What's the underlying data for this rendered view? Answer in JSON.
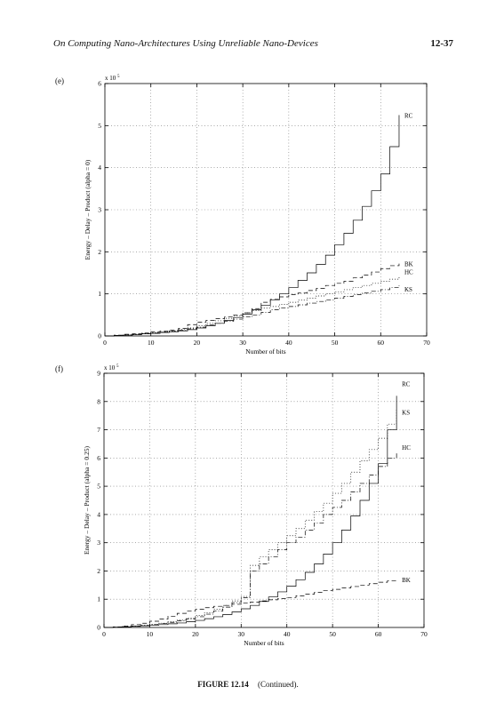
{
  "header": {
    "title": "On Computing Nano-Architectures Using Unreliable Nano-Devices",
    "page_number": "12-37"
  },
  "caption": {
    "label": "FIGURE 12.14",
    "text": "(Continued)."
  },
  "panel_labels": [
    "(e)",
    "(f)"
  ],
  "chart_data": [
    {
      "type": "line",
      "panel": "(e)",
      "xlabel": "Number of bits",
      "ylabel": "Energy – Delay – Product  (alpha = 0)",
      "exponent_label": "x 10",
      "exponent_power": "5",
      "xlim": [
        0,
        70
      ],
      "ylim": [
        0,
        6
      ],
      "xticks": [
        "0",
        "10",
        "20",
        "30",
        "40",
        "50",
        "60",
        "70"
      ],
      "yticks": [
        "0",
        "1",
        "2",
        "3",
        "4",
        "5",
        "6"
      ],
      "grid": true,
      "series": [
        {
          "name": "RC",
          "style": "solid",
          "x": [
            2,
            4,
            6,
            8,
            10,
            12,
            14,
            16,
            18,
            20,
            22,
            24,
            26,
            28,
            30,
            32,
            34,
            36,
            38,
            40,
            42,
            44,
            46,
            48,
            50,
            52,
            54,
            56,
            58,
            60,
            62,
            64
          ],
          "y": [
            0.01,
            0.02,
            0.03,
            0.05,
            0.06,
            0.08,
            0.1,
            0.12,
            0.15,
            0.19,
            0.24,
            0.3,
            0.37,
            0.44,
            0.52,
            0.62,
            0.73,
            0.86,
            1.0,
            1.15,
            1.32,
            1.5,
            1.7,
            1.92,
            2.17,
            2.44,
            2.75,
            3.08,
            3.45,
            3.85,
            4.5,
            5.25
          ]
        },
        {
          "name": "BK",
          "style": "dashed",
          "x": [
            2,
            4,
            6,
            8,
            10,
            12,
            14,
            16,
            18,
            20,
            22,
            24,
            26,
            28,
            30,
            32,
            34,
            36,
            38,
            40,
            42,
            44,
            46,
            48,
            50,
            52,
            54,
            56,
            58,
            60,
            62,
            64
          ],
          "y": [
            0.02,
            0.04,
            0.05,
            0.07,
            0.1,
            0.12,
            0.14,
            0.18,
            0.27,
            0.33,
            0.37,
            0.41,
            0.45,
            0.5,
            0.55,
            0.65,
            0.8,
            0.87,
            0.93,
            0.98,
            1.02,
            1.08,
            1.13,
            1.2,
            1.25,
            1.3,
            1.38,
            1.45,
            1.52,
            1.6,
            1.67,
            1.72
          ]
        },
        {
          "name": "HC",
          "style": "dotted",
          "x": [
            2,
            4,
            6,
            8,
            10,
            12,
            14,
            16,
            18,
            20,
            22,
            24,
            26,
            28,
            30,
            32,
            34,
            36,
            38,
            40,
            42,
            44,
            46,
            48,
            50,
            52,
            54,
            56,
            58,
            60,
            62,
            64
          ],
          "y": [
            0.01,
            0.03,
            0.04,
            0.06,
            0.08,
            0.1,
            0.12,
            0.15,
            0.19,
            0.24,
            0.3,
            0.36,
            0.42,
            0.48,
            0.55,
            0.6,
            0.66,
            0.7,
            0.75,
            0.8,
            0.85,
            0.9,
            0.95,
            1.0,
            1.05,
            1.1,
            1.15,
            1.2,
            1.25,
            1.3,
            1.35,
            1.4
          ]
        },
        {
          "name": "KS",
          "style": "dash-dot",
          "x": [
            2,
            4,
            6,
            8,
            10,
            12,
            14,
            16,
            18,
            20,
            22,
            24,
            26,
            28,
            30,
            32,
            34,
            36,
            38,
            40,
            42,
            44,
            46,
            48,
            50,
            52,
            54,
            56,
            58,
            60,
            62,
            64
          ],
          "y": [
            0.01,
            0.02,
            0.04,
            0.05,
            0.07,
            0.09,
            0.11,
            0.14,
            0.17,
            0.21,
            0.26,
            0.3,
            0.35,
            0.4,
            0.45,
            0.5,
            0.56,
            0.62,
            0.67,
            0.7,
            0.74,
            0.78,
            0.82,
            0.86,
            0.9,
            0.94,
            0.98,
            1.02,
            1.06,
            1.1,
            1.15,
            1.2
          ]
        }
      ]
    },
    {
      "type": "line",
      "panel": "(f)",
      "xlabel": "Number of bits",
      "ylabel": "Energy – Delay – Product  (alpha = 0.25)",
      "exponent_label": "x 10",
      "exponent_power": "5",
      "xlim": [
        0,
        70
      ],
      "ylim": [
        0,
        9
      ],
      "xticks": [
        "0",
        "10",
        "20",
        "30",
        "40",
        "50",
        "60",
        "70"
      ],
      "yticks": [
        "0",
        "1",
        "2",
        "3",
        "4",
        "5",
        "6",
        "7",
        "8",
        "9"
      ],
      "grid": true,
      "series": [
        {
          "name": "RC",
          "style": "solid",
          "x": [
            2,
            4,
            6,
            8,
            10,
            12,
            14,
            16,
            18,
            20,
            22,
            24,
            26,
            28,
            30,
            32,
            34,
            36,
            38,
            40,
            42,
            44,
            46,
            48,
            50,
            52,
            54,
            56,
            58,
            60,
            62,
            64
          ],
          "y": [
            0.01,
            0.02,
            0.04,
            0.06,
            0.08,
            0.1,
            0.13,
            0.16,
            0.2,
            0.25,
            0.31,
            0.38,
            0.46,
            0.55,
            0.66,
            0.78,
            0.92,
            1.08,
            1.26,
            1.46,
            1.69,
            1.95,
            2.25,
            2.6,
            3.0,
            3.45,
            3.95,
            4.5,
            5.1,
            5.8,
            7.0,
            8.2
          ]
        },
        {
          "name": "KS",
          "style": "dotted",
          "x": [
            2,
            4,
            6,
            8,
            10,
            12,
            14,
            16,
            18,
            20,
            22,
            24,
            26,
            28,
            30,
            32,
            34,
            36,
            38,
            40,
            42,
            44,
            46,
            48,
            50,
            52,
            54,
            56,
            58,
            60,
            62,
            64
          ],
          "y": [
            0.01,
            0.03,
            0.05,
            0.08,
            0.11,
            0.15,
            0.2,
            0.26,
            0.33,
            0.42,
            0.52,
            0.64,
            0.78,
            0.94,
            1.1,
            2.2,
            2.5,
            2.75,
            3.0,
            3.25,
            3.5,
            3.8,
            4.1,
            4.4,
            4.75,
            5.1,
            5.5,
            5.9,
            6.3,
            6.7,
            7.2,
            7.7
          ]
        },
        {
          "name": "HC",
          "style": "dash-dot",
          "x": [
            2,
            4,
            6,
            8,
            10,
            12,
            14,
            16,
            18,
            20,
            22,
            24,
            26,
            28,
            30,
            32,
            34,
            36,
            38,
            40,
            42,
            44,
            46,
            48,
            50,
            52,
            54,
            56,
            58,
            60,
            62,
            64
          ],
          "y": [
            0.01,
            0.03,
            0.05,
            0.07,
            0.1,
            0.14,
            0.18,
            0.24,
            0.3,
            0.38,
            0.47,
            0.58,
            0.72,
            0.88,
            1.05,
            2.0,
            2.25,
            2.5,
            2.75,
            3.0,
            3.2,
            3.45,
            3.7,
            4.0,
            4.25,
            4.5,
            4.8,
            5.1,
            5.4,
            5.7,
            6.0,
            6.2
          ]
        },
        {
          "name": "BK",
          "style": "dashed",
          "x": [
            2,
            4,
            6,
            8,
            10,
            12,
            14,
            16,
            18,
            20,
            22,
            24,
            26,
            28,
            30,
            32,
            34,
            36,
            38,
            40,
            42,
            44,
            46,
            48,
            50,
            52,
            54,
            56,
            58,
            60,
            62,
            64
          ],
          "y": [
            0.02,
            0.05,
            0.1,
            0.15,
            0.22,
            0.3,
            0.4,
            0.5,
            0.58,
            0.64,
            0.7,
            0.75,
            0.78,
            0.82,
            0.86,
            0.9,
            0.94,
            0.98,
            1.02,
            1.06,
            1.12,
            1.18,
            1.24,
            1.3,
            1.35,
            1.4,
            1.45,
            1.5,
            1.55,
            1.6,
            1.65,
            1.7
          ]
        }
      ]
    }
  ]
}
